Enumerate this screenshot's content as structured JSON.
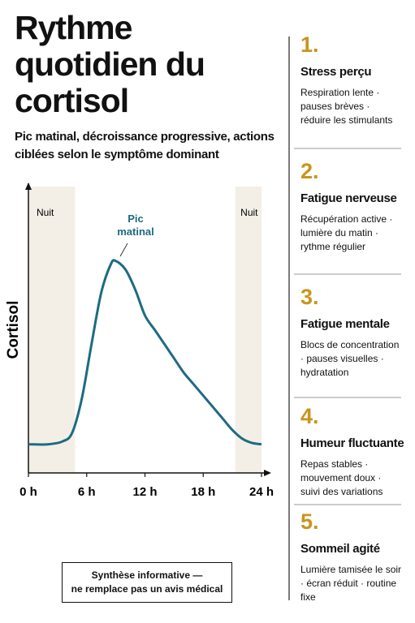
{
  "chart_data": {
    "type": "line",
    "title": "Rythme quotidien du cortisol",
    "subtitle": "Pic matinal, décroissance progressive, actions ciblées selon le symptôme dominant",
    "y_label": "Cortisol",
    "x": [
      0,
      2,
      3.5,
      4.5,
      5.5,
      6.5,
      7.5,
      8.5,
      9,
      10,
      11,
      12,
      13,
      14,
      15,
      16,
      17,
      18,
      19,
      20,
      21,
      22,
      23,
      24
    ],
    "series": [
      {
        "color": "#1d6b82",
        "values": [
          10,
          10,
          11,
          14,
          26,
          45,
          63,
          73,
          74,
          71,
          64,
          55,
          50,
          45,
          40,
          35,
          31,
          27,
          23,
          19,
          15,
          12,
          10.5,
          10
        ]
      }
    ],
    "xlim": [
      0,
      24
    ],
    "ylim": [
      0,
      100
    ],
    "xticks": [
      {
        "value": 0,
        "label": "0 h"
      },
      {
        "value": 6,
        "label": "6 h"
      },
      {
        "value": 12,
        "label": "12 h"
      },
      {
        "value": 18,
        "label": "18 h"
      },
      {
        "value": 24,
        "label": "24 h"
      }
    ],
    "shaded": [
      {
        "label": "Nuit",
        "range": [
          0,
          4.8
        ],
        "color": "#f3efe6"
      },
      {
        "label": "Nuit",
        "range": [
          21.3,
          24
        ],
        "color": "#f3efe6"
      }
    ],
    "annotation": "Pic matinal"
  },
  "actions": {
    "color": "#c9951c",
    "items": [
      {
        "number": "1.",
        "title": "Stress perçu",
        "text": "Respiration lente · pauses brèves · réduire les stimulants"
      },
      {
        "number": "2.",
        "title": "Fatigue nerveuse",
        "text": "Récupération active · lumière du matin · rythme régulier"
      },
      {
        "number": "3.",
        "title": "Fatigue mentale",
        "text": "Blocs de concentration · pauses visuelles · hydratation"
      },
      {
        "number": "4.",
        "title": "Humeur fluctuante",
        "text": "Repas stables · mouvement doux · suivi des variations"
      },
      {
        "number": "5.",
        "title": "Sommeil agité",
        "text": "Lumière tamisée le soir · écran réduit · routine fixe"
      }
    ]
  },
  "note": [
    "Synthèse informative —",
    "ne remplace pas un avis médical"
  ]
}
